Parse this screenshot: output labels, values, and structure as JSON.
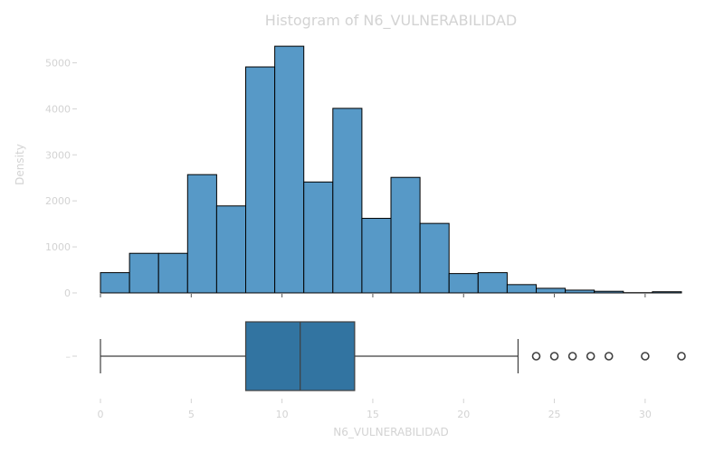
{
  "chart_data": {
    "type": "histogram+boxplot",
    "title": "Histogram of N6_VULNERABILIDAD",
    "xlabel": "N6_VULNERABILIDAD",
    "ylabel": "Density",
    "xlim": [
      0,
      32
    ],
    "ylim": [
      0,
      5500
    ],
    "x_ticks": [
      0,
      5,
      10,
      15,
      20,
      25,
      30
    ],
    "y_ticks": [
      0,
      1000,
      2000,
      3000,
      4000,
      5000
    ],
    "box_tick_label": "–",
    "bar_color": "#5799c7",
    "box_color": "#3274a1",
    "histogram": {
      "bins": [
        {
          "start": 0.0,
          "end": 1.6,
          "count": 440
        },
        {
          "start": 1.6,
          "end": 3.2,
          "count": 860
        },
        {
          "start": 3.2,
          "end": 4.8,
          "count": 860
        },
        {
          "start": 4.8,
          "end": 6.4,
          "count": 2570
        },
        {
          "start": 6.4,
          "end": 8.0,
          "count": 1890
        },
        {
          "start": 8.0,
          "end": 9.6,
          "count": 4910
        },
        {
          "start": 9.6,
          "end": 11.2,
          "count": 5360
        },
        {
          "start": 11.2,
          "end": 12.8,
          "count": 2410
        },
        {
          "start": 12.8,
          "end": 14.4,
          "count": 4010
        },
        {
          "start": 14.4,
          "end": 16.0,
          "count": 1620
        },
        {
          "start": 16.0,
          "end": 17.6,
          "count": 2510
        },
        {
          "start": 17.6,
          "end": 19.2,
          "count": 1510
        },
        {
          "start": 19.2,
          "end": 20.8,
          "count": 420
        },
        {
          "start": 20.8,
          "end": 22.4,
          "count": 440
        },
        {
          "start": 22.4,
          "end": 24.0,
          "count": 180
        },
        {
          "start": 24.0,
          "end": 25.6,
          "count": 100
        },
        {
          "start": 25.6,
          "end": 27.2,
          "count": 60
        },
        {
          "start": 27.2,
          "end": 28.8,
          "count": 35
        },
        {
          "start": 28.8,
          "end": 30.4,
          "count": 5
        },
        {
          "start": 30.4,
          "end": 32.0,
          "count": 25
        }
      ]
    },
    "boxplot": {
      "whisker_low": 0,
      "q1": 8,
      "median": 11,
      "q3": 14,
      "whisker_high": 23,
      "outliers": [
        24,
        25,
        26,
        27,
        28,
        30,
        32
      ]
    }
  }
}
